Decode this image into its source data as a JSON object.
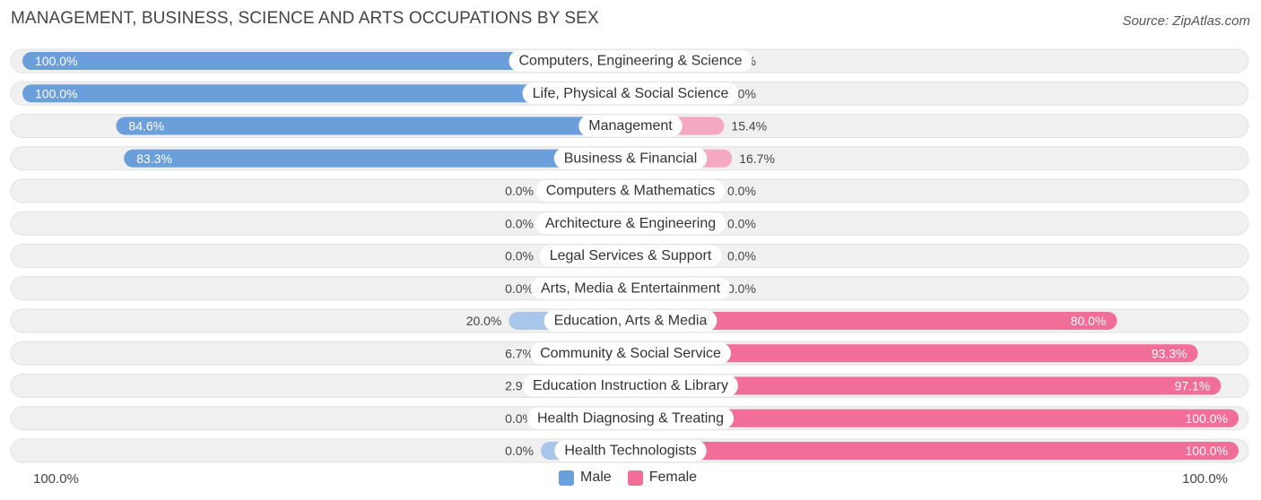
{
  "title": "MANAGEMENT, BUSINESS, SCIENCE AND ARTS OCCUPATIONS BY SEX",
  "source": "Source: ZipAtlas.com",
  "colors": {
    "male": "#6a9fdc",
    "male_light": "#a8c6ea",
    "female": "#f06e98",
    "female_light": "#f5a9c1",
    "track": "#f0f0f0"
  },
  "axis": {
    "left_label": "100.0%",
    "right_label": "100.0%"
  },
  "legend": {
    "male": "Male",
    "female": "Female"
  },
  "chart_data": {
    "type": "bar",
    "orientation": "horizontal-diverging",
    "categories": [
      "Computers, Engineering & Science",
      "Life, Physical & Social Science",
      "Management",
      "Business & Financial",
      "Computers & Mathematics",
      "Architecture & Engineering",
      "Legal Services & Support",
      "Arts, Media & Entertainment",
      "Education, Arts & Media",
      "Community & Social Service",
      "Education Instruction & Library",
      "Health Diagnosing & Treating",
      "Health Technologists"
    ],
    "series": [
      {
        "name": "Male",
        "values": [
          100.0,
          100.0,
          84.6,
          83.3,
          0.0,
          0.0,
          0.0,
          0.0,
          20.0,
          6.7,
          2.9,
          0.0,
          0.0
        ],
        "labels": [
          "100.0%",
          "100.0%",
          "84.6%",
          "83.3%",
          "0.0%",
          "0.0%",
          "0.0%",
          "0.0%",
          "20.0%",
          "6.7%",
          "2.9%",
          "0.0%",
          "0.0%"
        ]
      },
      {
        "name": "Female",
        "values": [
          0.0,
          0.0,
          15.4,
          16.7,
          0.0,
          0.0,
          0.0,
          0.0,
          80.0,
          93.3,
          97.1,
          100.0,
          100.0
        ],
        "labels": [
          "0.0%",
          "0.0%",
          "15.4%",
          "16.7%",
          "0.0%",
          "0.0%",
          "0.0%",
          "0.0%",
          "80.0%",
          "93.3%",
          "97.1%",
          "100.0%",
          "100.0%"
        ]
      }
    ],
    "xlim": [
      -100,
      100
    ],
    "unit": "%",
    "legend_position": "bottom-center"
  }
}
